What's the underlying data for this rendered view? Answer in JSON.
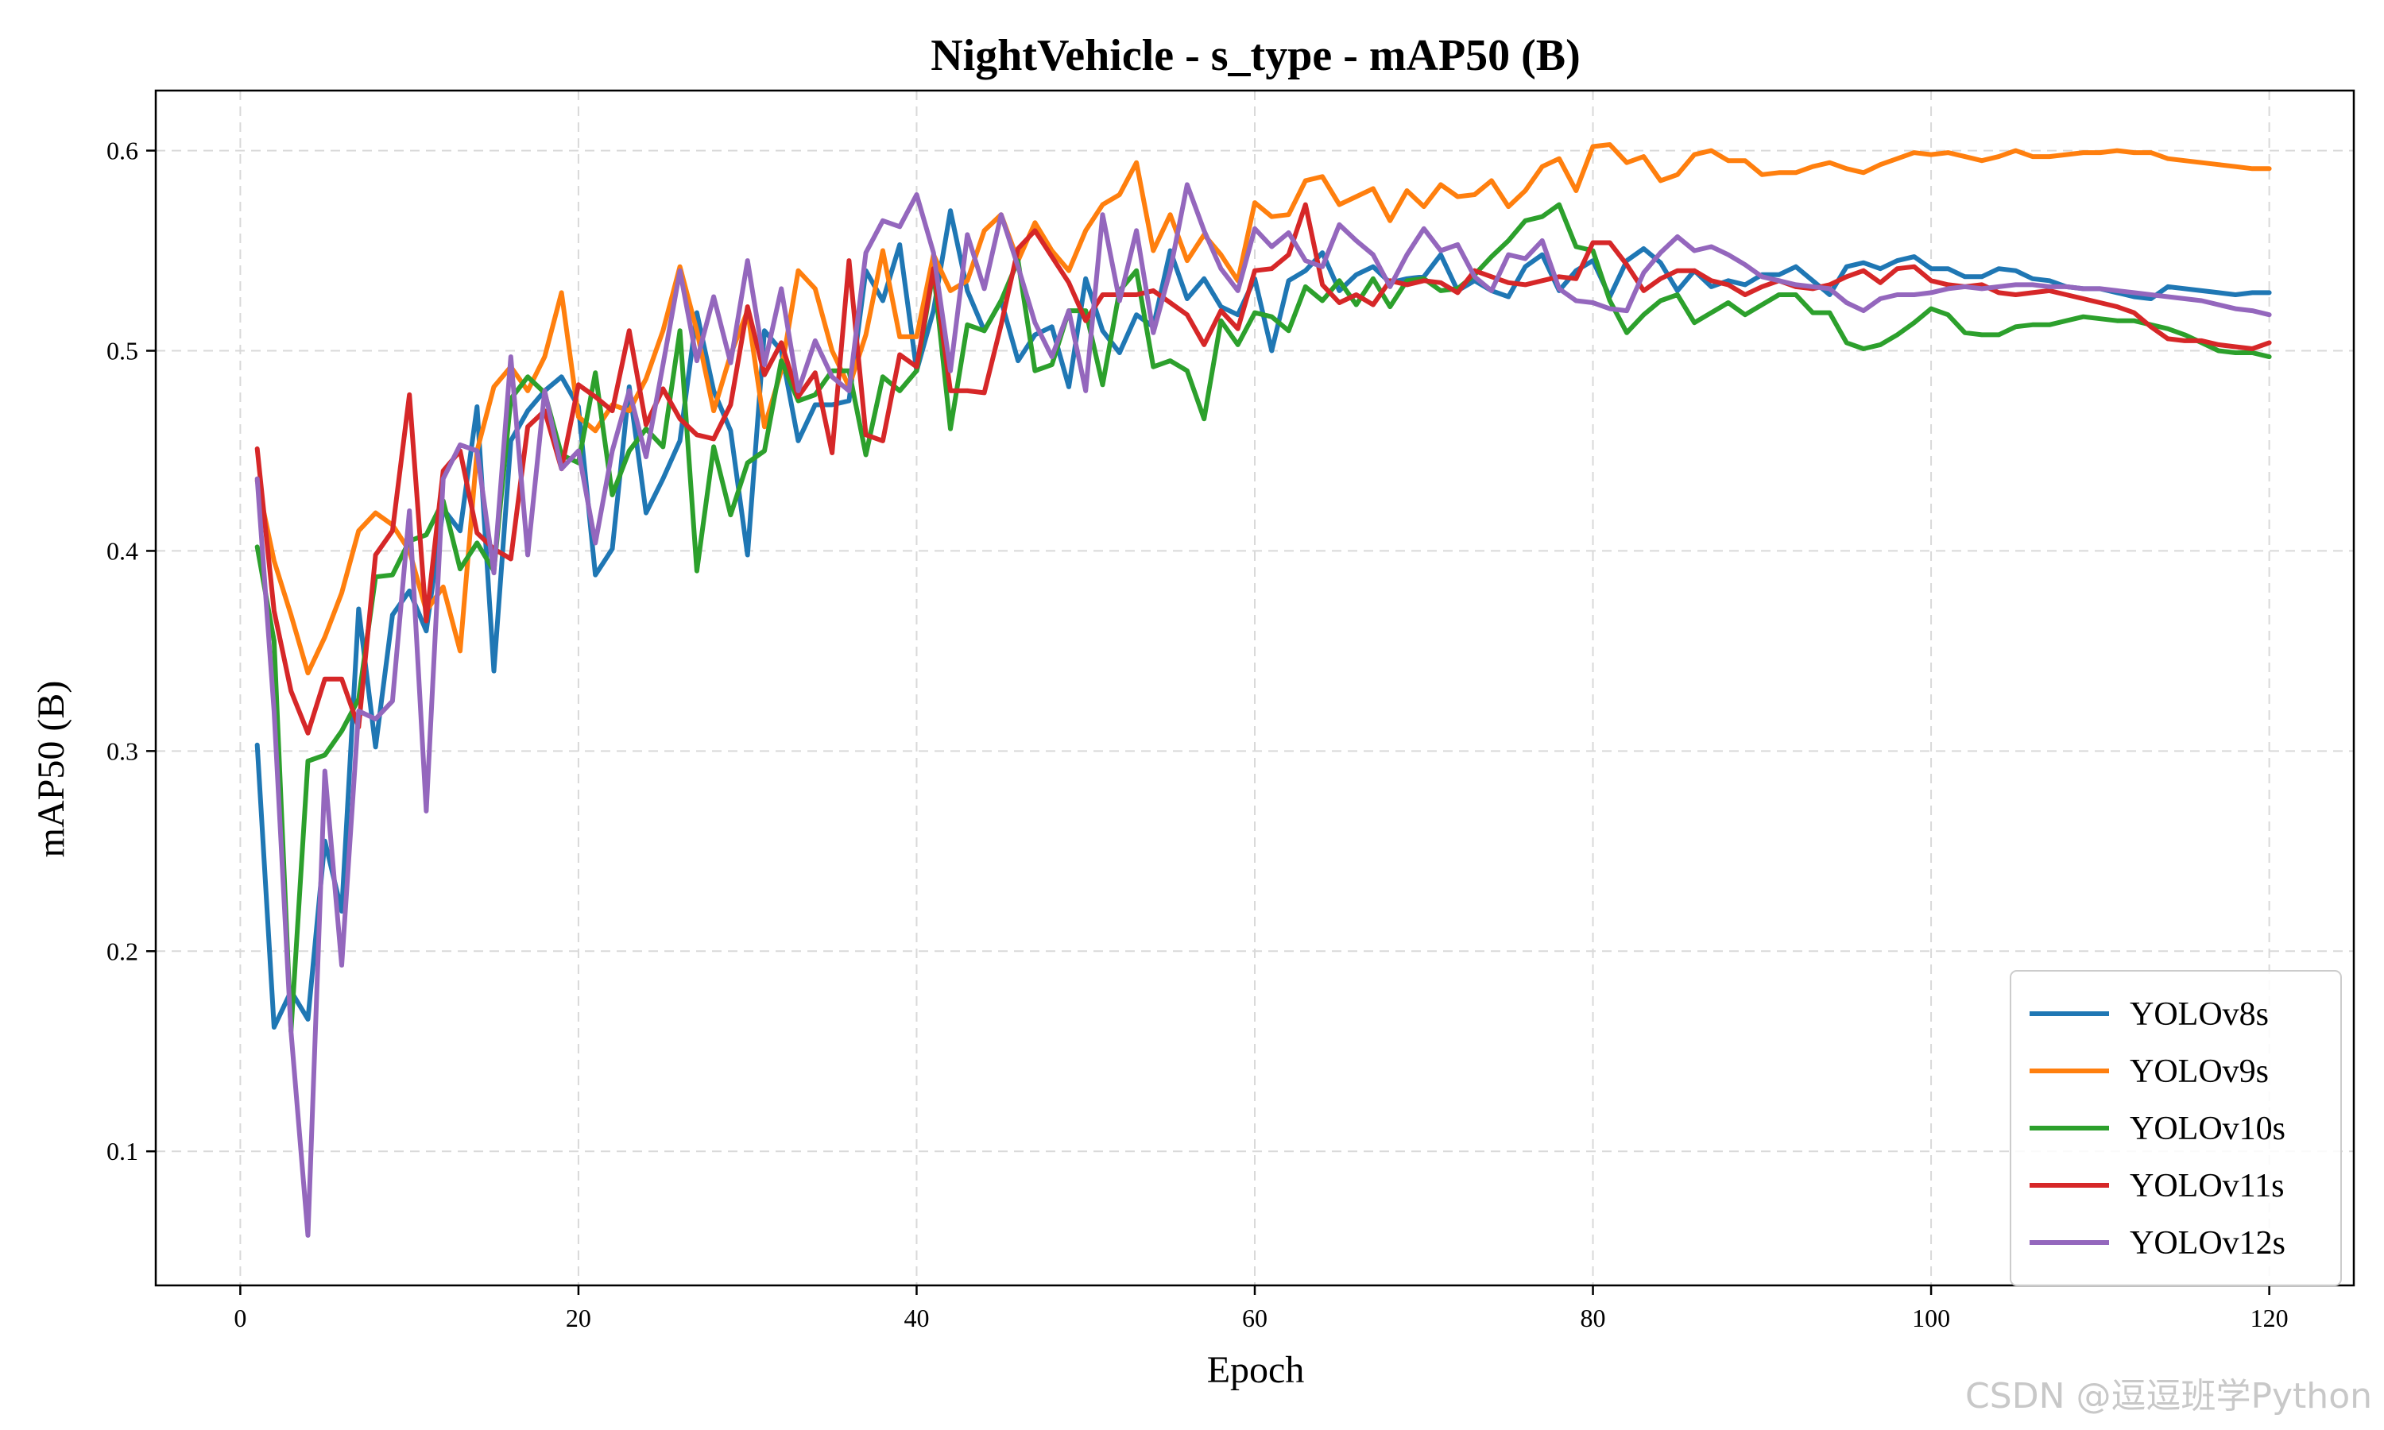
{
  "chart_data": {
    "type": "line",
    "title": "NightVehicle - s_type - mAP50 (B)",
    "xlabel": "Epoch",
    "ylabel": "mAP50 (B)",
    "xlim": [
      -5,
      125
    ],
    "ylim": [
      0.033,
      0.63
    ],
    "xticks": [
      0,
      20,
      40,
      60,
      80,
      100,
      120
    ],
    "yticks": [
      0.1,
      0.2,
      0.3,
      0.4,
      0.5,
      0.6
    ],
    "grid": true,
    "legend_position": "bottom-right",
    "epochs": [
      1,
      2,
      3,
      4,
      5,
      6,
      7,
      8,
      9,
      10,
      11,
      12,
      13,
      14,
      15,
      16,
      17,
      18,
      19,
      20,
      21,
      22,
      23,
      24,
      25,
      26,
      27,
      28,
      29,
      30,
      31,
      32,
      33,
      34,
      35,
      36,
      37,
      38,
      39,
      40,
      41,
      42,
      43,
      44,
      45,
      46,
      47,
      48,
      49,
      50,
      51,
      52,
      53,
      54,
      55,
      56,
      57,
      58,
      59,
      60,
      61,
      62,
      63,
      64,
      65,
      66,
      67,
      68,
      69,
      70,
      71,
      72,
      73,
      74,
      75,
      76,
      77,
      78,
      79,
      80,
      81,
      82,
      83,
      84,
      85,
      86,
      87,
      88,
      89,
      90,
      91,
      92,
      93,
      94,
      95,
      96,
      97,
      98,
      99,
      100,
      101,
      102,
      103,
      104,
      105,
      106,
      107,
      108,
      109,
      110,
      111,
      112,
      113,
      114,
      115,
      116,
      117,
      118,
      119,
      120
    ],
    "series": [
      {
        "name": "YOLOv8s",
        "color": "#1f77b4",
        "values": [
          0.303,
          0.162,
          0.18,
          0.166,
          0.255,
          0.22,
          0.371,
          0.302,
          0.368,
          0.38,
          0.36,
          0.421,
          0.41,
          0.472,
          0.34,
          0.455,
          0.47,
          0.48,
          0.487,
          0.472,
          0.388,
          0.401,
          0.482,
          0.419,
          0.436,
          0.455,
          0.519,
          0.48,
          0.46,
          0.398,
          0.51,
          0.5,
          0.455,
          0.473,
          0.473,
          0.475,
          0.54,
          0.525,
          0.553,
          0.49,
          0.52,
          0.57,
          0.53,
          0.51,
          0.525,
          0.495,
          0.508,
          0.512,
          0.482,
          0.536,
          0.51,
          0.499,
          0.518,
          0.512,
          0.55,
          0.526,
          0.536,
          0.522,
          0.518,
          0.536,
          0.5,
          0.535,
          0.54,
          0.549,
          0.53,
          0.538,
          0.542,
          0.534,
          0.536,
          0.537,
          0.548,
          0.53,
          0.535,
          0.53,
          0.527,
          0.542,
          0.548,
          0.53,
          0.54,
          0.545,
          0.527,
          0.545,
          0.551,
          0.544,
          0.53,
          0.54,
          0.532,
          0.535,
          0.533,
          0.538,
          0.538,
          0.542,
          0.535,
          0.528,
          0.542,
          0.544,
          0.541,
          0.545,
          0.547,
          0.541,
          0.541,
          0.537,
          0.537,
          0.541,
          0.54,
          0.536,
          0.535,
          0.532,
          0.531,
          0.531,
          0.529,
          0.527,
          0.526,
          0.532,
          0.531,
          0.53,
          0.529,
          0.528,
          0.529,
          0.529
        ]
      },
      {
        "name": "YOLOv9s",
        "color": "#ff7f0e",
        "values": [
          0.435,
          0.395,
          0.368,
          0.339,
          0.357,
          0.379,
          0.41,
          0.419,
          0.413,
          0.4,
          0.37,
          0.382,
          0.35,
          0.45,
          0.482,
          0.492,
          0.48,
          0.497,
          0.529,
          0.467,
          0.46,
          0.473,
          0.47,
          0.486,
          0.51,
          0.542,
          0.51,
          0.47,
          0.498,
          0.52,
          0.462,
          0.49,
          0.54,
          0.531,
          0.5,
          0.482,
          0.508,
          0.55,
          0.507,
          0.507,
          0.548,
          0.53,
          0.535,
          0.56,
          0.568,
          0.545,
          0.564,
          0.55,
          0.54,
          0.56,
          0.573,
          0.578,
          0.594,
          0.55,
          0.568,
          0.545,
          0.558,
          0.548,
          0.535,
          0.574,
          0.567,
          0.568,
          0.585,
          0.587,
          0.573,
          0.577,
          0.581,
          0.565,
          0.58,
          0.572,
          0.583,
          0.577,
          0.578,
          0.585,
          0.572,
          0.58,
          0.592,
          0.596,
          0.58,
          0.602,
          0.603,
          0.594,
          0.597,
          0.585,
          0.588,
          0.598,
          0.6,
          0.595,
          0.595,
          0.588,
          0.589,
          0.589,
          0.592,
          0.594,
          0.591,
          0.589,
          0.593,
          0.596,
          0.599,
          0.598,
          0.599,
          0.597,
          0.595,
          0.597,
          0.6,
          0.597,
          0.597,
          0.598,
          0.599,
          0.599,
          0.6,
          0.599,
          0.599,
          0.596,
          0.595,
          0.594,
          0.593,
          0.592,
          0.591,
          0.591
        ]
      },
      {
        "name": "YOLOv10s",
        "color": "#2ca02c",
        "values": [
          0.402,
          0.355,
          0.16,
          0.295,
          0.298,
          0.31,
          0.326,
          0.387,
          0.388,
          0.405,
          0.408,
          0.425,
          0.391,
          0.404,
          0.39,
          0.476,
          0.487,
          0.479,
          0.448,
          0.444,
          0.489,
          0.428,
          0.45,
          0.461,
          0.452,
          0.51,
          0.39,
          0.452,
          0.418,
          0.444,
          0.45,
          0.495,
          0.475,
          0.478,
          0.49,
          0.49,
          0.448,
          0.487,
          0.48,
          0.49,
          0.54,
          0.461,
          0.513,
          0.51,
          0.525,
          0.545,
          0.49,
          0.493,
          0.52,
          0.52,
          0.483,
          0.53,
          0.54,
          0.492,
          0.495,
          0.49,
          0.466,
          0.515,
          0.503,
          0.519,
          0.517,
          0.51,
          0.532,
          0.525,
          0.535,
          0.523,
          0.536,
          0.522,
          0.535,
          0.536,
          0.53,
          0.531,
          0.538,
          0.547,
          0.555,
          0.565,
          0.567,
          0.573,
          0.552,
          0.55,
          0.525,
          0.509,
          0.518,
          0.525,
          0.528,
          0.514,
          0.519,
          0.524,
          0.518,
          0.523,
          0.528,
          0.528,
          0.519,
          0.519,
          0.504,
          0.501,
          0.503,
          0.508,
          0.514,
          0.521,
          0.518,
          0.509,
          0.508,
          0.508,
          0.512,
          0.513,
          0.513,
          0.515,
          0.517,
          0.516,
          0.515,
          0.515,
          0.513,
          0.511,
          0.508,
          0.504,
          0.5,
          0.499,
          0.499,
          0.497
        ]
      },
      {
        "name": "YOLOv11s",
        "color": "#d62728",
        "values": [
          0.451,
          0.37,
          0.33,
          0.309,
          0.336,
          0.336,
          0.312,
          0.398,
          0.41,
          0.478,
          0.365,
          0.44,
          0.45,
          0.409,
          0.401,
          0.396,
          0.462,
          0.47,
          0.441,
          0.483,
          0.477,
          0.47,
          0.51,
          0.463,
          0.481,
          0.466,
          0.458,
          0.456,
          0.473,
          0.522,
          0.488,
          0.504,
          0.477,
          0.489,
          0.449,
          0.545,
          0.458,
          0.455,
          0.498,
          0.492,
          0.541,
          0.48,
          0.48,
          0.479,
          0.513,
          0.551,
          0.56,
          0.547,
          0.534,
          0.515,
          0.528,
          0.528,
          0.528,
          0.53,
          0.524,
          0.518,
          0.503,
          0.52,
          0.511,
          0.54,
          0.541,
          0.548,
          0.573,
          0.533,
          0.524,
          0.528,
          0.523,
          0.535,
          0.533,
          0.535,
          0.534,
          0.529,
          0.54,
          0.537,
          0.534,
          0.533,
          0.535,
          0.537,
          0.536,
          0.554,
          0.554,
          0.543,
          0.53,
          0.536,
          0.54,
          0.54,
          0.535,
          0.533,
          0.528,
          0.532,
          0.535,
          0.532,
          0.531,
          0.533,
          0.537,
          0.54,
          0.534,
          0.541,
          0.542,
          0.535,
          0.533,
          0.532,
          0.533,
          0.529,
          0.528,
          0.529,
          0.53,
          0.528,
          0.526,
          0.524,
          0.522,
          0.519,
          0.512,
          0.506,
          0.505,
          0.505,
          0.503,
          0.502,
          0.501,
          0.504
        ]
      },
      {
        "name": "YOLOv12s",
        "color": "#9467bd",
        "values": [
          0.436,
          0.32,
          0.16,
          0.058,
          0.29,
          0.193,
          0.32,
          0.316,
          0.325,
          0.42,
          0.27,
          0.436,
          0.453,
          0.45,
          0.389,
          0.497,
          0.398,
          0.48,
          0.441,
          0.45,
          0.404,
          0.45,
          0.48,
          0.447,
          0.493,
          0.54,
          0.495,
          0.527,
          0.494,
          0.545,
          0.493,
          0.531,
          0.48,
          0.505,
          0.487,
          0.48,
          0.549,
          0.565,
          0.562,
          0.578,
          0.549,
          0.49,
          0.558,
          0.531,
          0.568,
          0.542,
          0.514,
          0.497,
          0.52,
          0.48,
          0.568,
          0.525,
          0.56,
          0.509,
          0.54,
          0.583,
          0.56,
          0.541,
          0.53,
          0.561,
          0.552,
          0.559,
          0.545,
          0.542,
          0.563,
          0.555,
          0.548,
          0.532,
          0.548,
          0.561,
          0.55,
          0.553,
          0.537,
          0.53,
          0.548,
          0.546,
          0.555,
          0.531,
          0.525,
          0.524,
          0.521,
          0.52,
          0.539,
          0.549,
          0.557,
          0.55,
          0.552,
          0.548,
          0.543,
          0.537,
          0.535,
          0.533,
          0.532,
          0.531,
          0.524,
          0.52,
          0.526,
          0.528,
          0.528,
          0.529,
          0.531,
          0.532,
          0.531,
          0.532,
          0.533,
          0.533,
          0.532,
          0.532,
          0.531,
          0.531,
          0.53,
          0.529,
          0.528,
          0.527,
          0.526,
          0.525,
          0.523,
          0.521,
          0.52,
          0.518
        ]
      }
    ]
  },
  "watermark": "CSDN @逗逗班学Python"
}
